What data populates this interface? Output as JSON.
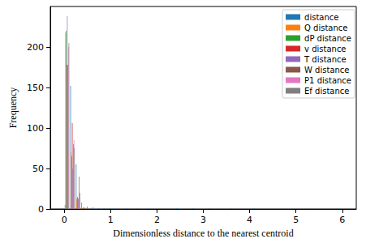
{
  "chart_data": {
    "type": "histogram",
    "x_label": "Dimensionless distance to the nearest centroid",
    "y_label": "Frequency",
    "bins": [
      0,
      0.12,
      0.24,
      0.36,
      0.48,
      0.6,
      0.72,
      0.84,
      0.96,
      1.08,
      1.2,
      1.32,
      1.44,
      1.56,
      1.68,
      1.8,
      1.92,
      2.04,
      2.16,
      2.28,
      2.4,
      2.52,
      2.64,
      2.76,
      2.88,
      3.0,
      3.12,
      3.24,
      3.36,
      3.48,
      3.6,
      3.72,
      3.84,
      3.96,
      4.08,
      4.2,
      4.32,
      4.44,
      4.56,
      4.68,
      4.8,
      4.92,
      5.04,
      5.16,
      5.28,
      5.4,
      5.52,
      5.64,
      5.76,
      5.88,
      6.0
    ],
    "series": [
      {
        "name": "distance",
        "color": "#1f77b4",
        "values": [
          5,
          152,
          55,
          8,
          3,
          2,
          1,
          1,
          1,
          1,
          0,
          1,
          0,
          1,
          0,
          1,
          0,
          0,
          1,
          0,
          1,
          0,
          0,
          1,
          0,
          0,
          1,
          0,
          0,
          0,
          1,
          0,
          0,
          0,
          1,
          0,
          0,
          0,
          0,
          1,
          0,
          0,
          0,
          0,
          1,
          0,
          0,
          0,
          0,
          1
        ]
      },
      {
        "name": "Q distance",
        "color": "#ff7f0e",
        "values": [
          218,
          70,
          12,
          1,
          0,
          0,
          0,
          0,
          0,
          0,
          0,
          0,
          0,
          0,
          0,
          0,
          0,
          0,
          0,
          0,
          0,
          0,
          0,
          0,
          0,
          0,
          0,
          0,
          0,
          0,
          0,
          0,
          0,
          0,
          0,
          0,
          0,
          0,
          0,
          0,
          0,
          0,
          0,
          0,
          0,
          0,
          0,
          0,
          0,
          0
        ]
      },
      {
        "name": "dP distance",
        "color": "#2ca02c",
        "values": [
          220,
          65,
          15,
          1,
          0,
          0,
          0,
          0,
          0,
          0,
          0,
          0,
          0,
          0,
          0,
          0,
          0,
          0,
          0,
          0,
          0,
          0,
          0,
          0,
          0,
          0,
          0,
          0,
          0,
          0,
          0,
          0,
          0,
          0,
          0,
          0,
          0,
          0,
          0,
          0,
          0,
          0,
          0,
          0,
          0,
          0,
          0,
          0,
          0,
          0
        ]
      },
      {
        "name": "v distance",
        "color": "#d62728",
        "values": [
          178,
          106,
          14,
          2,
          0,
          0,
          0,
          0,
          0,
          0,
          0,
          0,
          0,
          0,
          0,
          0,
          0,
          0,
          0,
          0,
          0,
          0,
          0,
          0,
          0,
          0,
          0,
          0,
          0,
          0,
          0,
          0,
          0,
          0,
          0,
          0,
          0,
          0,
          0,
          0,
          0,
          0,
          0,
          0,
          0,
          0,
          0,
          0,
          0,
          0
        ]
      },
      {
        "name": "T distance",
        "color": "#9467bd",
        "values": [
          238,
          50,
          12,
          0,
          0,
          0,
          0,
          0,
          0,
          0,
          0,
          0,
          0,
          0,
          0,
          0,
          0,
          0,
          0,
          0,
          0,
          0,
          0,
          0,
          0,
          0,
          0,
          0,
          0,
          0,
          0,
          0,
          0,
          0,
          0,
          0,
          0,
          0,
          0,
          0,
          0,
          0,
          0,
          0,
          0,
          0,
          0,
          0,
          0,
          0
        ]
      },
      {
        "name": "W distance",
        "color": "#8c564b",
        "values": [
          178,
          80,
          40,
          2,
          0,
          0,
          0,
          0,
          0,
          0,
          0,
          0,
          0,
          0,
          0,
          0,
          0,
          0,
          0,
          0,
          0,
          0,
          0,
          0,
          0,
          0,
          0,
          0,
          0,
          0,
          0,
          0,
          0,
          0,
          0,
          0,
          0,
          0,
          0,
          0,
          0,
          0,
          0,
          0,
          0,
          0,
          0,
          0,
          0,
          0
        ]
      },
      {
        "name": "P1 distance",
        "color": "#e377c2",
        "values": [
          200,
          85,
          15,
          0,
          0,
          0,
          0,
          0,
          0,
          0,
          0,
          0,
          0,
          0,
          0,
          0,
          0,
          0,
          0,
          0,
          0,
          0,
          0,
          0,
          0,
          0,
          0,
          0,
          0,
          0,
          0,
          0,
          0,
          0,
          0,
          0,
          0,
          0,
          0,
          0,
          0,
          0,
          0,
          0,
          0,
          0,
          0,
          0,
          0,
          0
        ]
      },
      {
        "name": "Ef distance",
        "color": "#7f7f7f",
        "values": [
          205,
          75,
          20,
          0,
          0,
          0,
          0,
          0,
          0,
          0,
          0,
          0,
          0,
          0,
          0,
          0,
          0,
          0,
          0,
          0,
          0,
          0,
          0,
          0,
          0,
          0,
          0,
          0,
          0,
          0,
          0,
          0,
          0,
          0,
          0,
          0,
          0,
          0,
          0,
          0,
          0,
          0,
          0,
          0,
          0,
          0,
          0,
          0,
          0,
          0
        ]
      }
    ],
    "xlim": [
      -0.3,
      6.3
    ],
    "xticks": [
      0,
      1,
      2,
      3,
      4,
      5,
      6
    ],
    "ylim": [
      0,
      250
    ],
    "yticks": [
      0,
      50,
      100,
      150,
      200
    ],
    "grid": false,
    "legend": "upper right"
  }
}
